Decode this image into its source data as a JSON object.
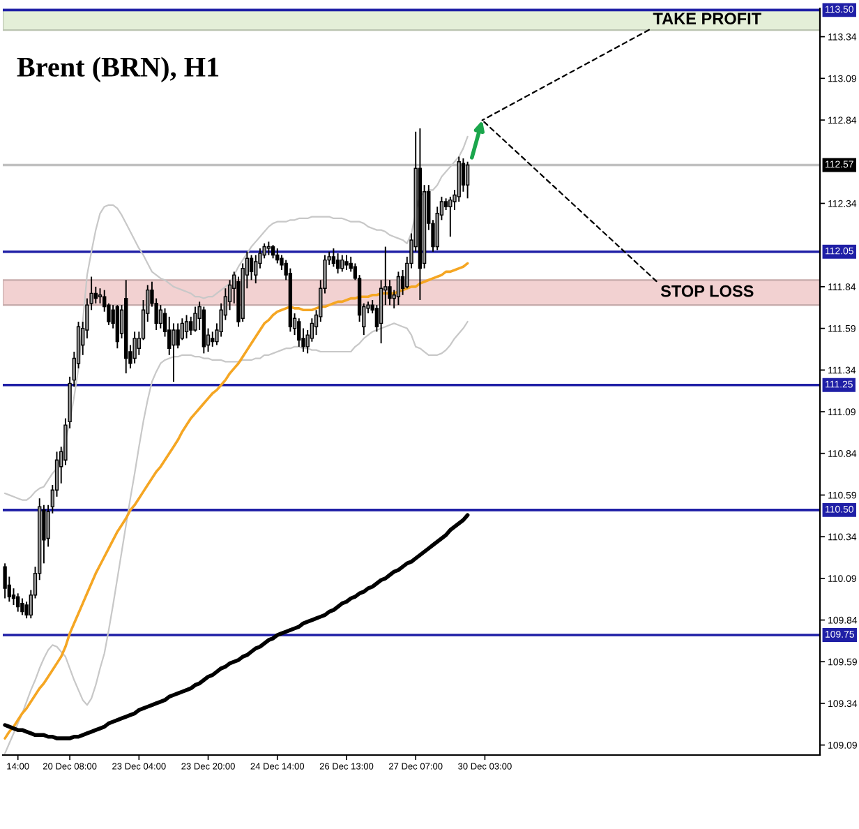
{
  "chart_data": {
    "type": "candlestick",
    "title": "Brent (BRN), H1",
    "color": "#000000",
    "categories": [
      null,
      null,
      null,
      "14:00",
      null,
      null,
      null,
      null,
      null,
      null,
      null,
      null,
      null,
      null,
      null,
      "20 Dec 08:00",
      null,
      null,
      null,
      null,
      null,
      null,
      null,
      null,
      null,
      null,
      null,
      null,
      null,
      null,
      null,
      "23 Dec 04:00",
      null,
      null,
      null,
      null,
      null,
      null,
      null,
      null,
      null,
      null,
      null,
      null,
      null,
      null,
      null,
      "23 Dec 20:00",
      null,
      null,
      null,
      null,
      null,
      null,
      null,
      null,
      null,
      null,
      null,
      null,
      null,
      null,
      null,
      "24 Dec 14:00",
      null,
      null,
      null,
      null,
      null,
      null,
      null,
      null,
      null,
      null,
      null,
      null,
      null,
      null,
      null,
      "26 Dec 13:00",
      null,
      null,
      null,
      null,
      null,
      null,
      null,
      null,
      null,
      null,
      null,
      null,
      null,
      null,
      null,
      "27 Dec 07:00",
      null,
      null,
      null,
      null,
      null,
      null,
      null,
      null,
      null,
      null,
      null,
      null,
      null,
      null,
      null,
      "30 Dec 03:00",
      null,
      null,
      null,
      null,
      null,
      null,
      null,
      null,
      null,
      null,
      null,
      null,
      null,
      null,
      null,
      null,
      null,
      null,
      null,
      null,
      null,
      null,
      null,
      null,
      null,
      null,
      null,
      null,
      null,
      null,
      null,
      null,
      null,
      null,
      null,
      null,
      null,
      null,
      null,
      null,
      null,
      null,
      null,
      null,
      null,
      null,
      null,
      null,
      null,
      null,
      null,
      null,
      null,
      null,
      null,
      null,
      null,
      null,
      null,
      null,
      null,
      null,
      null,
      null,
      null,
      null,
      null,
      null,
      null,
      null,
      null,
      null,
      null,
      null,
      null,
      null,
      null
    ],
    "ohlc": [
      [
        110.16,
        110.18,
        109.97,
        110.03
      ],
      [
        110.05,
        110.1,
        109.95,
        109.98
      ],
      [
        109.99,
        110.03,
        109.93,
        109.97
      ],
      [
        109.98,
        110.0,
        109.89,
        109.92
      ],
      [
        109.94,
        109.97,
        109.87,
        109.89
      ],
      [
        109.93,
        109.95,
        109.85,
        109.87
      ],
      [
        109.87,
        110.02,
        109.85,
        109.99
      ],
      [
        109.99,
        110.16,
        109.97,
        110.12
      ],
      [
        110.12,
        110.57,
        110.08,
        110.52
      ],
      [
        110.5,
        110.53,
        110.18,
        110.32
      ],
      [
        110.33,
        110.53,
        110.28,
        110.49
      ],
      [
        110.52,
        110.65,
        110.48,
        110.62
      ],
      [
        110.62,
        110.85,
        110.58,
        110.8
      ],
      [
        110.76,
        110.88,
        110.66,
        110.85
      ],
      [
        110.8,
        111.05,
        110.77,
        111.01
      ],
      [
        111.03,
        111.3,
        110.99,
        111.26
      ],
      [
        111.28,
        111.45,
        111.24,
        111.41
      ],
      [
        111.38,
        111.63,
        111.35,
        111.6
      ],
      [
        111.49,
        111.63,
        111.43,
        111.59
      ],
      [
        111.58,
        111.77,
        111.53,
        111.73
      ],
      [
        111.74,
        111.9,
        111.7,
        111.8
      ],
      [
        111.8,
        111.84,
        111.74,
        111.77
      ],
      [
        111.78,
        111.83,
        111.74,
        111.79
      ],
      [
        111.78,
        111.82,
        111.69,
        111.72
      ],
      [
        111.73,
        111.74,
        111.61,
        111.63
      ],
      [
        111.7,
        111.73,
        111.59,
        111.62
      ],
      [
        111.72,
        111.73,
        111.47,
        111.51
      ],
      [
        111.56,
        111.73,
        111.53,
        111.7
      ],
      [
        111.77,
        111.88,
        111.32,
        111.41
      ],
      [
        111.45,
        111.49,
        111.35,
        111.38
      ],
      [
        111.41,
        111.57,
        111.38,
        111.53
      ],
      [
        111.47,
        111.57,
        111.43,
        111.53
      ],
      [
        111.53,
        111.76,
        111.52,
        111.7
      ],
      [
        111.68,
        111.85,
        111.63,
        111.82
      ],
      [
        111.82,
        111.87,
        111.72,
        111.74
      ],
      [
        111.74,
        111.77,
        111.58,
        111.62
      ],
      [
        111.62,
        111.73,
        111.59,
        111.7
      ],
      [
        111.68,
        111.71,
        111.54,
        111.57
      ],
      [
        111.58,
        111.66,
        111.43,
        111.47
      ],
      [
        111.49,
        111.62,
        111.27,
        111.58
      ],
      [
        111.58,
        111.62,
        111.47,
        111.49
      ],
      [
        111.53,
        111.65,
        111.52,
        111.62
      ],
      [
        111.57,
        111.67,
        111.53,
        111.63
      ],
      [
        111.63,
        111.66,
        111.55,
        111.58
      ],
      [
        111.58,
        111.72,
        111.57,
        111.68
      ],
      [
        111.65,
        111.75,
        111.58,
        111.72
      ],
      [
        111.7,
        111.72,
        111.44,
        111.48
      ],
      [
        111.49,
        111.59,
        111.45,
        111.55
      ],
      [
        111.53,
        111.57,
        111.48,
        111.51
      ],
      [
        111.51,
        111.62,
        111.49,
        111.58
      ],
      [
        111.57,
        111.74,
        111.54,
        111.7
      ],
      [
        111.67,
        111.83,
        111.64,
        111.78
      ],
      [
        111.75,
        111.88,
        111.7,
        111.85
      ],
      [
        111.83,
        111.93,
        111.74,
        111.91
      ],
      [
        111.87,
        111.9,
        111.6,
        111.63
      ],
      [
        111.65,
        111.98,
        111.63,
        111.95
      ],
      [
        111.91,
        112.05,
        111.83,
        112.01
      ],
      [
        112.01,
        112.03,
        111.88,
        111.93
      ],
      [
        111.91,
        112.03,
        111.86,
        111.99
      ],
      [
        111.98,
        112.07,
        111.95,
        112.04
      ],
      [
        112.03,
        112.1,
        112.01,
        112.08
      ],
      [
        112.07,
        112.11,
        112.03,
        112.08
      ],
      [
        112.08,
        112.09,
        112.01,
        112.03
      ],
      [
        112.03,
        112.07,
        111.98,
        112.0
      ],
      [
        112.01,
        112.03,
        111.94,
        111.97
      ],
      [
        111.98,
        112.0,
        111.88,
        111.91
      ],
      [
        111.92,
        111.95,
        111.57,
        111.6
      ],
      [
        111.59,
        111.68,
        111.55,
        111.65
      ],
      [
        111.63,
        111.65,
        111.48,
        111.52
      ],
      [
        111.53,
        111.59,
        111.45,
        111.48
      ],
      [
        111.48,
        111.58,
        111.44,
        111.55
      ],
      [
        111.53,
        111.65,
        111.51,
        111.62
      ],
      [
        111.6,
        111.7,
        111.55,
        111.67
      ],
      [
        111.66,
        111.88,
        111.63,
        111.83
      ],
      [
        111.83,
        112.03,
        111.8,
        112.0
      ],
      [
        112.0,
        112.05,
        111.97,
        112.02
      ],
      [
        112.02,
        112.07,
        111.96,
        111.98
      ],
      [
        112.0,
        112.04,
        111.92,
        111.95
      ],
      [
        111.95,
        112.03,
        111.93,
        112.0
      ],
      [
        111.99,
        112.03,
        111.94,
        111.97
      ],
      [
        111.98,
        112.02,
        111.93,
        111.95
      ],
      [
        111.96,
        111.98,
        111.88,
        111.89
      ],
      [
        111.89,
        111.91,
        111.63,
        111.67
      ],
      [
        111.6,
        111.74,
        111.55,
        111.72
      ],
      [
        111.71,
        111.75,
        111.68,
        111.73
      ],
      [
        111.73,
        111.76,
        111.68,
        111.7
      ],
      [
        111.71,
        111.73,
        111.57,
        111.6
      ],
      [
        111.62,
        111.88,
        111.5,
        111.83
      ],
      [
        111.82,
        112.08,
        111.73,
        111.84
      ],
      [
        111.84,
        111.88,
        111.73,
        111.77
      ],
      [
        111.77,
        111.82,
        111.71,
        111.79
      ],
      [
        111.78,
        111.93,
        111.73,
        111.9
      ],
      [
        111.9,
        111.94,
        111.79,
        111.83
      ],
      [
        111.84,
        112.02,
        111.83,
        111.98
      ],
      [
        111.98,
        112.16,
        111.95,
        112.12
      ],
      [
        112.08,
        112.77,
        112.05,
        112.55
      ],
      [
        112.55,
        112.79,
        111.76,
        111.95
      ],
      [
        111.98,
        112.45,
        111.95,
        112.41
      ],
      [
        112.41,
        112.45,
        112.18,
        112.22
      ],
      [
        112.22,
        112.24,
        112.05,
        112.08
      ],
      [
        112.08,
        112.32,
        112.06,
        112.28
      ],
      [
        112.27,
        112.38,
        112.24,
        112.35
      ],
      [
        112.35,
        112.37,
        112.3,
        112.32
      ],
      [
        112.32,
        112.38,
        112.14,
        112.36
      ],
      [
        112.35,
        112.42,
        112.3,
        112.39
      ],
      [
        112.38,
        112.62,
        112.35,
        112.59
      ],
      [
        112.58,
        112.61,
        112.41,
        112.45
      ],
      [
        112.45,
        112.59,
        112.37,
        112.57
      ],
      null,
      null,
      null,
      null,
      null,
      null,
      null,
      null,
      null,
      null,
      null,
      null,
      null,
      null,
      null,
      null,
      null,
      null,
      null,
      null,
      null,
      null,
      null,
      null,
      null,
      null,
      null,
      null,
      null,
      null,
      null,
      null,
      null,
      null,
      null,
      null,
      null,
      null,
      null,
      null,
      null,
      null,
      null,
      null,
      null,
      null,
      null,
      null,
      null,
      null,
      null,
      null,
      null,
      null,
      null,
      null,
      null,
      null,
      null,
      null,
      null,
      null,
      null,
      null,
      null,
      null,
      null,
      null,
      null,
      null,
      null,
      null,
      null,
      null,
      null,
      null,
      null,
      null,
      null,
      null,
      null
    ],
    "series": [
      {
        "type": "line",
        "color": "#c8c8c8",
        "values": [
          110.6,
          110.59,
          110.58,
          110.57,
          110.56,
          110.56,
          110.58,
          110.61,
          110.63,
          110.64,
          110.68,
          110.72,
          110.75,
          110.82,
          110.92,
          111.03,
          111.18,
          111.35,
          111.63,
          111.91,
          112.05,
          112.18,
          112.28,
          112.32,
          112.33,
          112.33,
          112.31,
          112.27,
          112.22,
          112.17,
          112.12,
          112.07,
          112.03,
          111.98,
          111.93,
          111.91,
          111.89,
          111.88,
          111.86,
          111.84,
          111.83,
          111.82,
          111.81,
          111.8,
          111.78,
          111.78,
          111.77,
          111.78,
          111.78,
          111.8,
          111.82,
          111.84,
          111.86,
          111.91,
          111.96,
          112.0,
          112.04,
          112.08,
          112.11,
          112.14,
          112.17,
          112.2,
          112.22,
          112.23,
          112.23,
          112.23,
          112.24,
          112.24,
          112.25,
          112.25,
          112.25,
          112.26,
          112.26,
          112.26,
          112.26,
          112.26,
          112.25,
          112.25,
          112.25,
          112.24,
          112.23,
          112.23,
          112.23,
          112.22,
          112.2,
          112.19,
          112.18,
          112.18,
          112.17,
          112.15,
          112.14,
          112.13,
          112.12,
          112.1,
          112.16,
          112.28,
          112.39,
          112.4,
          112.42,
          112.42,
          112.45,
          112.5,
          112.53,
          112.56,
          112.59,
          112.62,
          112.67,
          112.74,
          null,
          null,
          null,
          null,
          null,
          null,
          null,
          null,
          null,
          null,
          null,
          null,
          null,
          null,
          null,
          null,
          null,
          null,
          null,
          null,
          null,
          null,
          null,
          null,
          null,
          null,
          null,
          null,
          null,
          null,
          null,
          null,
          null,
          null,
          null,
          null,
          null,
          null,
          null,
          null,
          null,
          null,
          null,
          null,
          null,
          null,
          null,
          null,
          null,
          null,
          null,
          null,
          null,
          null,
          null,
          null,
          null,
          null,
          null,
          null,
          null,
          null,
          null,
          null,
          null,
          null,
          null,
          null,
          null,
          null,
          null,
          null,
          null,
          null,
          null,
          null,
          null,
          null,
          null,
          null,
          null
        ]
      },
      {
        "type": "line",
        "color": "#c8c8c8",
        "values": [
          109.04,
          109.1,
          109.16,
          109.22,
          109.28,
          109.35,
          109.42,
          109.48,
          109.55,
          109.61,
          109.66,
          109.69,
          109.68,
          109.65,
          109.62,
          109.55,
          109.48,
          109.42,
          109.36,
          109.33,
          109.37,
          109.45,
          109.55,
          109.64,
          109.78,
          109.93,
          110.09,
          110.25,
          110.41,
          110.57,
          110.72,
          110.88,
          111.03,
          111.16,
          111.27,
          111.33,
          111.38,
          111.4,
          111.41,
          111.42,
          111.42,
          111.43,
          111.43,
          111.43,
          111.42,
          111.42,
          111.41,
          111.41,
          111.4,
          111.4,
          111.4,
          111.39,
          111.39,
          111.39,
          111.39,
          111.4,
          111.4,
          111.4,
          111.41,
          111.41,
          111.43,
          111.43,
          111.44,
          111.45,
          111.46,
          111.47,
          111.47,
          111.48,
          111.48,
          111.47,
          111.47,
          111.46,
          111.46,
          111.45,
          111.45,
          111.45,
          111.45,
          111.45,
          111.45,
          111.45,
          111.45,
          111.48,
          111.5,
          111.53,
          111.55,
          111.57,
          111.58,
          111.59,
          111.6,
          111.61,
          111.62,
          111.61,
          111.6,
          111.59,
          111.55,
          111.48,
          111.47,
          111.45,
          111.43,
          111.43,
          111.43,
          111.44,
          111.46,
          111.49,
          111.53,
          111.56,
          111.59,
          111.63,
          null,
          null,
          null,
          null,
          null,
          null,
          null,
          null,
          null,
          null,
          null,
          null,
          null,
          null,
          null,
          null,
          null,
          null,
          null,
          null,
          null,
          null,
          null,
          null,
          null,
          null,
          null,
          null,
          null,
          null,
          null,
          null,
          null,
          null,
          null,
          null,
          null,
          null,
          null,
          null,
          null,
          null,
          null,
          null,
          null,
          null,
          null,
          null,
          null,
          null,
          null,
          null,
          null,
          null,
          null,
          null,
          null,
          null,
          null,
          null,
          null,
          null,
          null,
          null,
          null,
          null,
          null,
          null,
          null,
          null,
          null,
          null,
          null,
          null,
          null,
          null,
          null,
          null,
          null,
          null,
          null
        ]
      },
      {
        "type": "line",
        "color": "#f5a623",
        "values": [
          109.13,
          109.17,
          109.2,
          109.24,
          109.28,
          109.31,
          109.35,
          109.39,
          109.43,
          109.46,
          109.5,
          109.54,
          109.58,
          109.62,
          109.68,
          109.76,
          109.82,
          109.88,
          109.94,
          110.0,
          110.06,
          110.12,
          110.17,
          110.22,
          110.27,
          110.32,
          110.37,
          110.41,
          110.45,
          110.5,
          110.53,
          110.57,
          110.61,
          110.65,
          110.69,
          110.73,
          110.76,
          110.8,
          110.84,
          110.88,
          110.92,
          110.97,
          111.01,
          111.05,
          111.08,
          111.11,
          111.14,
          111.17,
          111.2,
          111.22,
          111.25,
          111.28,
          111.32,
          111.35,
          111.38,
          111.42,
          111.46,
          111.5,
          111.54,
          111.58,
          111.62,
          111.64,
          111.67,
          111.69,
          111.7,
          111.71,
          111.72,
          111.71,
          111.71,
          111.7,
          111.7,
          111.7,
          111.71,
          111.72,
          111.72,
          111.73,
          111.74,
          111.75,
          111.75,
          111.76,
          111.77,
          111.77,
          111.78,
          111.78,
          111.78,
          111.79,
          111.79,
          111.8,
          111.8,
          111.8,
          111.8,
          111.81,
          111.82,
          111.83,
          111.84,
          111.84,
          111.86,
          111.87,
          111.88,
          111.89,
          111.9,
          111.91,
          111.93,
          111.93,
          111.94,
          111.95,
          111.96,
          111.98,
          null,
          null,
          null,
          null,
          null,
          null,
          null,
          null,
          null,
          null,
          null,
          null,
          null,
          null,
          null,
          null,
          null,
          null,
          null,
          null,
          null,
          null,
          null,
          null,
          null,
          null,
          null,
          null,
          null,
          null,
          null,
          null,
          null,
          null,
          null,
          null,
          null,
          null,
          null,
          null,
          null,
          null,
          null,
          null,
          null,
          null,
          null,
          null,
          null,
          null,
          null,
          null,
          null,
          null,
          null,
          null,
          null,
          null,
          null,
          null,
          null,
          null,
          null,
          null,
          null,
          null,
          null,
          null,
          null,
          null,
          null,
          null,
          null,
          null,
          null,
          null,
          null,
          null,
          null,
          null,
          null
        ]
      },
      {
        "type": "line",
        "color": "#000000",
        "values": [
          109.21,
          109.2,
          109.19,
          109.18,
          109.18,
          109.17,
          109.16,
          109.15,
          109.15,
          109.15,
          109.14,
          109.14,
          109.13,
          109.13,
          109.13,
          109.13,
          109.14,
          109.14,
          109.15,
          109.16,
          109.17,
          109.18,
          109.19,
          109.2,
          109.22,
          109.23,
          109.24,
          109.25,
          109.26,
          109.27,
          109.28,
          109.3,
          109.31,
          109.32,
          109.33,
          109.34,
          109.35,
          109.36,
          109.38,
          109.39,
          109.4,
          109.41,
          109.42,
          109.43,
          109.45,
          109.46,
          109.48,
          109.5,
          109.51,
          109.53,
          109.55,
          109.56,
          109.58,
          109.59,
          109.6,
          109.62,
          109.63,
          109.65,
          109.67,
          109.68,
          109.7,
          109.72,
          109.73,
          109.75,
          109.76,
          109.77,
          109.78,
          109.79,
          109.8,
          109.82,
          109.83,
          109.84,
          109.85,
          109.86,
          109.87,
          109.89,
          109.9,
          109.92,
          109.94,
          109.95,
          109.97,
          109.98,
          110.0,
          110.01,
          110.03,
          110.04,
          110.06,
          110.08,
          110.09,
          110.11,
          110.13,
          110.14,
          110.16,
          110.18,
          110.19,
          110.21,
          110.23,
          110.25,
          110.27,
          110.29,
          110.31,
          110.33,
          110.35,
          110.38,
          110.4,
          110.42,
          110.44,
          110.47,
          null,
          null,
          null,
          null,
          null,
          null,
          null,
          null,
          null,
          null,
          null,
          null,
          null,
          null,
          null,
          null,
          null,
          null,
          null,
          null,
          null,
          null,
          null,
          null,
          null,
          null,
          null,
          null,
          null,
          null,
          null,
          null,
          null,
          null,
          null,
          null,
          null,
          null,
          null,
          null,
          null,
          null,
          null,
          null,
          null,
          null,
          null,
          null,
          null,
          null,
          null,
          null,
          null,
          null,
          null,
          null,
          null,
          null,
          null,
          null,
          null,
          null,
          null,
          null,
          null,
          null,
          null,
          null,
          null,
          null,
          null,
          null,
          null,
          null,
          null,
          null,
          null,
          null,
          null,
          null,
          null
        ]
      }
    ],
    "ylim": [
      109.03,
      113.51
    ],
    "yticks": [
      113.34,
      113.09,
      112.84,
      112.34,
      111.84,
      111.59,
      111.34,
      111.09,
      110.84,
      110.59,
      110.34,
      110.09,
      109.84,
      109.59,
      109.34,
      109.09
    ],
    "ref_lines": [
      {
        "axis": "y",
        "value": 113.5,
        "label": "113.50",
        "color": "#1f1fa6"
      },
      {
        "axis": "y",
        "value": 112.57,
        "label": "112.57",
        "color": "#c0c0c0"
      },
      {
        "axis": "y",
        "value": 112.05,
        "label": "112.05",
        "color": "#1f1fa6"
      },
      {
        "axis": "y",
        "value": 111.25,
        "label": "111.25",
        "color": "#1f1fa6"
      },
      {
        "axis": "y",
        "value": 110.5,
        "label": "110.50",
        "color": "#1f1fa6"
      },
      {
        "axis": "y",
        "value": 109.75,
        "label": "109.75",
        "color": "#1f1fa6"
      }
    ],
    "bands": [
      {
        "axis": "y",
        "from": 113.38,
        "to": 113.5,
        "label": "TAKE PROFIT",
        "color": "#e4efd8"
      },
      {
        "axis": "y",
        "from": 111.73,
        "to": 111.88,
        "label": "STOP LOSS",
        "color": "#f2d1d1"
      }
    ]
  }
}
